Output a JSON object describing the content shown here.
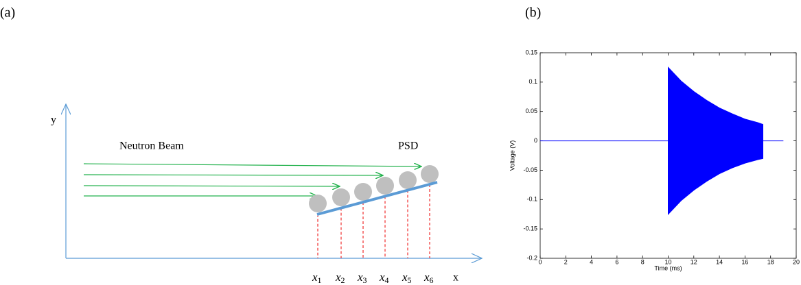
{
  "panel_a": {
    "label": "(a)",
    "y_axis": "y",
    "x_axis": "x",
    "beam": "Neutron Beam",
    "detector": "PSD",
    "positions": [
      {
        "var": "x",
        "sub": "1"
      },
      {
        "var": "x",
        "sub": "2"
      },
      {
        "var": "x",
        "sub": "3"
      },
      {
        "var": "x",
        "sub": "4"
      },
      {
        "var": "x",
        "sub": "5"
      },
      {
        "var": "x",
        "sub": "6"
      }
    ]
  },
  "panel_b": {
    "label": "(b)"
  },
  "chart_data": {
    "type": "envelope",
    "xlabel": "Time (ms)",
    "ylabel": "Voltage (V)",
    "color": "#0000ff",
    "x": [
      0,
      10,
      10,
      11,
      12,
      13,
      14,
      15,
      16,
      17,
      17.4,
      17.4,
      19
    ],
    "upper": [
      0,
      0,
      0.125,
      0.102,
      0.084,
      0.069,
      0.056,
      0.046,
      0.037,
      0.031,
      0.028,
      0,
      0
    ],
    "lower": [
      0,
      0,
      -0.125,
      -0.102,
      -0.084,
      -0.069,
      -0.056,
      -0.046,
      -0.038,
      -0.032,
      -0.03,
      0,
      0
    ],
    "xlim": [
      0,
      20
    ],
    "xticks": [
      0,
      2,
      4,
      6,
      8,
      10,
      12,
      14,
      16,
      18,
      20
    ],
    "ylim": [
      -0.2,
      0.15
    ],
    "yticks": [
      -0.2,
      -0.15,
      -0.1,
      -0.05,
      0,
      0.05,
      0.1,
      0.15
    ]
  }
}
